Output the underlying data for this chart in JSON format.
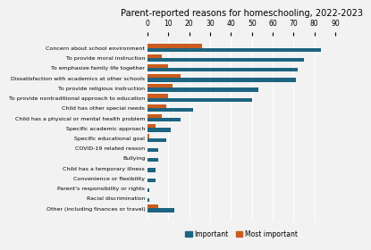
{
  "title": "Parent-reported reasons for homeschooling, 2022-2023",
  "categories": [
    "Concern about school environment",
    "To provide moral instruction",
    "To emphasize family life together",
    "Dissatisfaction with academics at other schools",
    "To provide religious instruction",
    "To provide nontraditional approach to education",
    "Child has other special needs",
    "Child has a physical or mental health problem",
    "Specific academic approach",
    "Specific educational goal",
    "COVID-19 related reason",
    "Bullying",
    "Child has a temporary illness",
    "Convenience or flexibility",
    "Parent's responsibility or rights",
    "Racial discrimination",
    "Other (including finances or travel)"
  ],
  "important": [
    83,
    75,
    72,
    71,
    53,
    50,
    22,
    16,
    11,
    9,
    5,
    5,
    4,
    4,
    1,
    1,
    13
  ],
  "most_important": [
    26,
    7,
    10,
    16,
    12,
    10,
    9,
    7,
    4,
    1,
    0,
    0,
    0,
    0,
    0,
    0,
    5
  ],
  "color_important": "#1c6480",
  "color_most_important": "#c95c1e",
  "xlim": [
    0,
    90
  ],
  "xticks": [
    0,
    10,
    20,
    30,
    40,
    50,
    60,
    70,
    80,
    90
  ],
  "bar_height": 0.38,
  "legend_labels": [
    "Important",
    "Most important"
  ],
  "background_color": "#f2f2f2",
  "title_fontsize": 7,
  "label_fontsize": 4.5,
  "tick_fontsize": 5.5
}
